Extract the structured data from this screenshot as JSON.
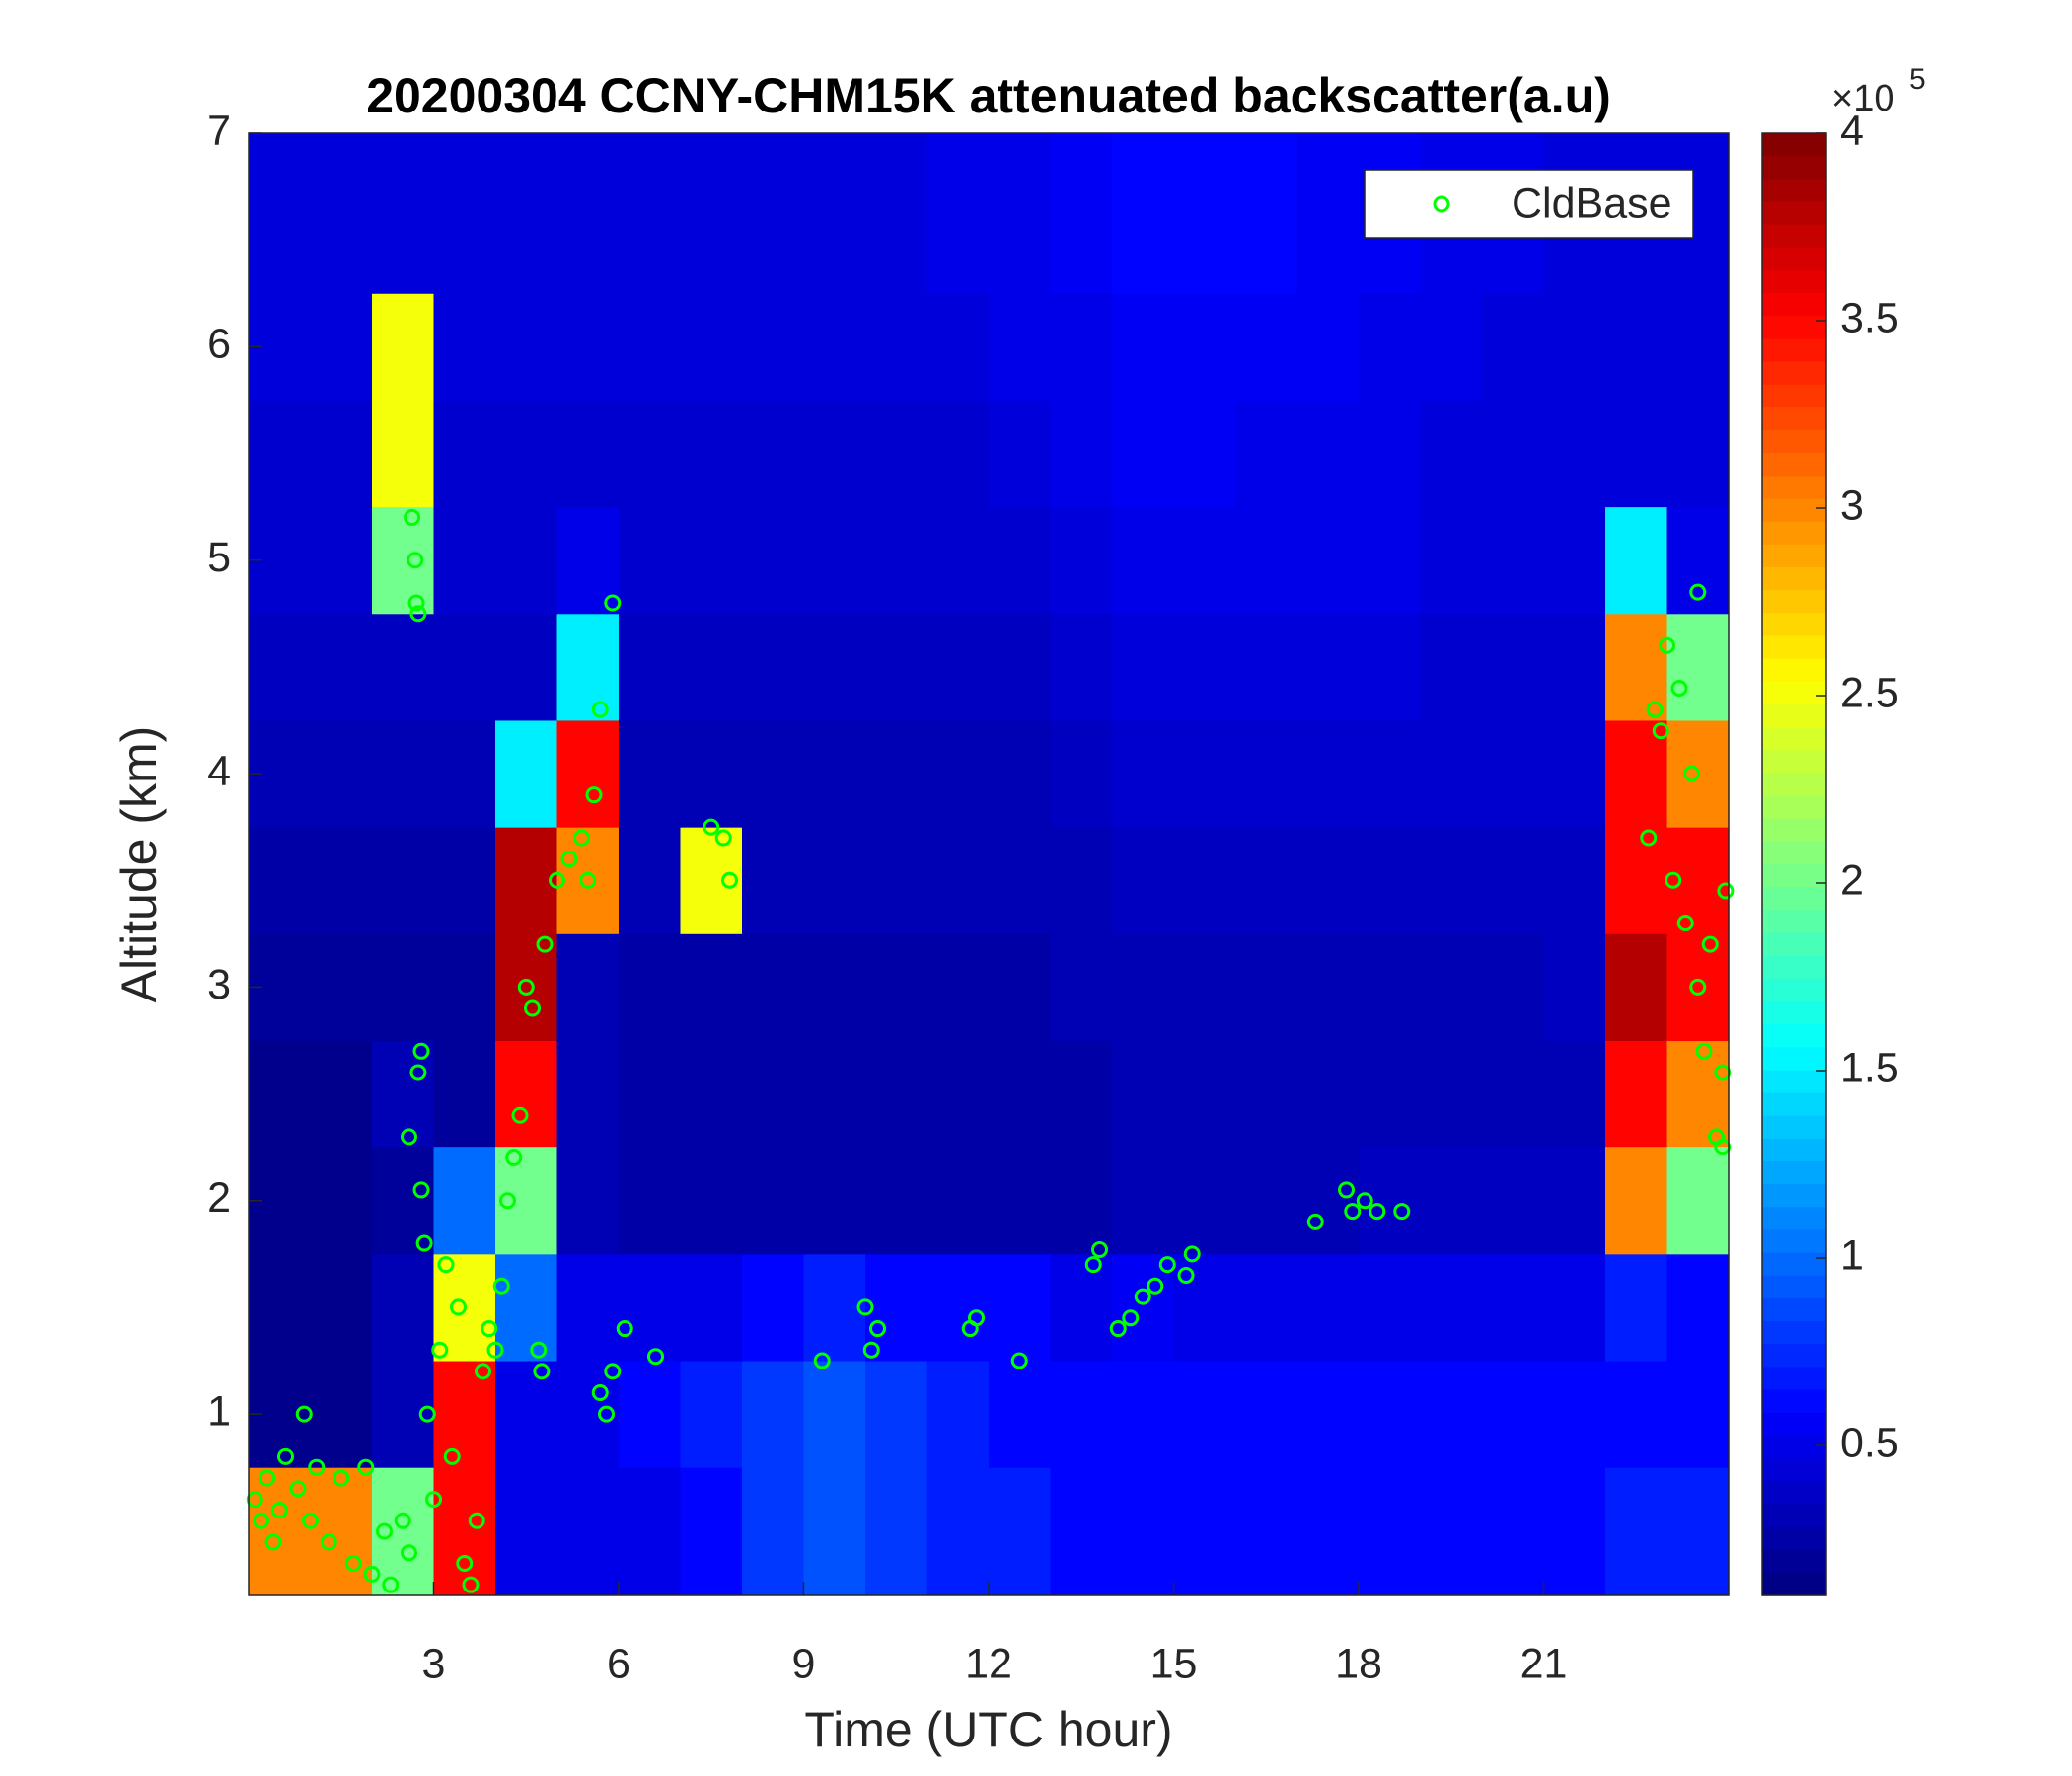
{
  "chart_data": {
    "type": "heatmap",
    "title": "20200304 CCNY-CHM15K attenuated backscatter(a.u)",
    "xlabel": "Time (UTC hour)",
    "ylabel": "Altitude (km)",
    "xlim": [
      0,
      24
    ],
    "ylim": [
      0.15,
      7
    ],
    "xticks": [
      3,
      6,
      9,
      12,
      15,
      18,
      21
    ],
    "yticks": [
      1,
      2,
      3,
      4,
      5,
      6,
      7
    ],
    "colormap": "jet",
    "clim": [
      0.1,
      4
    ],
    "cticks": [
      0.5,
      1,
      1.5,
      2,
      2.5,
      3,
      3.5,
      4
    ],
    "colorbar_multiplier_label": "×10",
    "colorbar_exponent": 5,
    "legend_position": "upper right",
    "x": [
      0.5,
      1.5,
      2.5,
      3.5,
      4.5,
      5.5,
      6.5,
      7.5,
      8.5,
      9.5,
      10.5,
      11.5,
      12.5,
      13.5,
      14.5,
      15.5,
      16.5,
      17.5,
      18.5,
      19.5,
      20.5,
      21.5,
      22.5,
      23.5
    ],
    "y": [
      0.5,
      1,
      1.5,
      2,
      2.5,
      3,
      3.5,
      4,
      4.5,
      5,
      5.5,
      6,
      6.5
    ],
    "z": [
      [
        3,
        3,
        2,
        3.5,
        0.5,
        0.5,
        0.5,
        0.6,
        0.8,
        0.9,
        0.8,
        0.7,
        0.7,
        0.6,
        0.6,
        0.6,
        0.6,
        0.6,
        0.6,
        0.6,
        0.6,
        0.6,
        0.7,
        0.7
      ],
      [
        0.15,
        0.15,
        0.3,
        3.5,
        0.5,
        0.5,
        0.6,
        0.7,
        0.8,
        0.9,
        0.8,
        0.7,
        0.6,
        0.6,
        0.6,
        0.6,
        0.6,
        0.6,
        0.6,
        0.6,
        0.6,
        0.6,
        0.6,
        0.6
      ],
      [
        0.15,
        0.15,
        0.3,
        2.5,
        1,
        0.5,
        0.5,
        0.5,
        0.6,
        0.7,
        0.6,
        0.6,
        0.6,
        0.5,
        0.55,
        0.5,
        0.5,
        0.5,
        0.5,
        0.5,
        0.5,
        0.5,
        0.7,
        0.6
      ],
      [
        0.15,
        0.15,
        0.2,
        1,
        2,
        0.3,
        0.25,
        0.25,
        0.25,
        0.25,
        0.25,
        0.25,
        0.25,
        0.25,
        0.3,
        0.3,
        0.3,
        0.3,
        0.35,
        0.35,
        0.35,
        0.35,
        3,
        2
      ],
      [
        0.15,
        0.15,
        0.3,
        0.2,
        3.5,
        0.3,
        0.25,
        0.25,
        0.25,
        0.25,
        0.25,
        0.25,
        0.25,
        0.25,
        0.3,
        0.3,
        0.3,
        0.3,
        0.3,
        0.3,
        0.3,
        0.3,
        3.5,
        3
      ],
      [
        0.2,
        0.2,
        0.2,
        0.2,
        3.8,
        0.3,
        0.25,
        0.25,
        0.25,
        0.25,
        0.25,
        0.25,
        0.25,
        0.3,
        0.3,
        0.3,
        0.3,
        0.3,
        0.3,
        0.3,
        0.3,
        0.35,
        3.8,
        3.5
      ],
      [
        0.25,
        0.25,
        0.25,
        0.25,
        3.8,
        3,
        0.3,
        2.5,
        0.3,
        0.3,
        0.3,
        0.3,
        0.3,
        0.3,
        0.35,
        0.35,
        0.35,
        0.35,
        0.35,
        0.35,
        0.35,
        0.35,
        3.5,
        3.5
      ],
      [
        0.3,
        0.3,
        0.3,
        0.3,
        1.5,
        3.5,
        0.3,
        0.3,
        0.3,
        0.3,
        0.3,
        0.3,
        0.3,
        0.35,
        0.4,
        0.4,
        0.4,
        0.4,
        0.4,
        0.4,
        0.4,
        0.4,
        3.5,
        3
      ],
      [
        0.35,
        0.35,
        0.35,
        0.35,
        0.35,
        1.5,
        0.35,
        0.35,
        0.35,
        0.35,
        0.35,
        0.35,
        0.35,
        0.4,
        0.45,
        0.45,
        0.45,
        0.45,
        0.45,
        0.4,
        0.4,
        0.4,
        3,
        2
      ],
      [
        0.4,
        0.4,
        2,
        0.4,
        0.4,
        0.5,
        0.4,
        0.4,
        0.4,
        0.4,
        0.4,
        0.4,
        0.4,
        0.45,
        0.5,
        0.5,
        0.5,
        0.5,
        0.5,
        0.45,
        0.45,
        0.45,
        1.5,
        0.5
      ],
      [
        0.4,
        0.4,
        2.5,
        0.4,
        0.4,
        0.4,
        0.4,
        0.4,
        0.4,
        0.4,
        0.4,
        0.4,
        0.45,
        0.5,
        0.55,
        0.55,
        0.5,
        0.5,
        0.5,
        0.45,
        0.45,
        0.45,
        0.45,
        0.45
      ],
      [
        0.45,
        0.45,
        2.5,
        0.45,
        0.45,
        0.45,
        0.45,
        0.45,
        0.45,
        0.45,
        0.45,
        0.45,
        0.5,
        0.5,
        0.55,
        0.55,
        0.55,
        0.55,
        0.5,
        0.5,
        0.45,
        0.45,
        0.45,
        0.45
      ],
      [
        0.45,
        0.45,
        0.45,
        0.45,
        0.45,
        0.45,
        0.45,
        0.45,
        0.45,
        0.45,
        0.45,
        0.5,
        0.5,
        0.55,
        0.6,
        0.6,
        0.6,
        0.55,
        0.55,
        0.5,
        0.5,
        0.45,
        0.45,
        0.45
      ]
    ],
    "series": [
      {
        "name": "CldBase",
        "color": "#00ff00",
        "x": [
          0.1,
          0.2,
          0.3,
          0.4,
          0.5,
          0.6,
          0.8,
          0.9,
          1.0,
          1.1,
          1.3,
          1.5,
          1.7,
          1.9,
          2.0,
          2.2,
          2.3,
          2.5,
          2.6,
          2.65,
          2.7,
          2.72,
          2.75,
          2.6,
          2.75,
          2.8,
          2.8,
          2.85,
          2.9,
          3.0,
          3.1,
          3.2,
          3.3,
          3.4,
          3.5,
          3.6,
          3.7,
          3.8,
          3.9,
          4.0,
          4.1,
          4.2,
          4.3,
          4.4,
          4.5,
          4.6,
          4.8,
          5.0,
          5.2,
          5.4,
          5.5,
          5.6,
          5.7,
          5.9,
          4.7,
          4.75,
          5.7,
          5.8,
          5.9,
          6.1,
          6.6,
          7.5,
          7.7,
          7.8,
          9.3,
          10.0,
          10.1,
          10.2,
          11.7,
          11.8,
          12.5,
          13.7,
          13.8,
          14.1,
          14.3,
          14.5,
          14.7,
          14.9,
          15.2,
          15.3,
          17.3,
          17.8,
          17.9,
          18.1,
          18.3,
          18.7,
          22.7,
          22.8,
          22.9,
          23.0,
          23.1,
          23.2,
          23.3,
          23.4,
          23.5,
          23.5,
          23.6,
          23.7,
          23.8,
          23.9,
          23.95,
          23.9
        ],
        "values": [
          0.6,
          0.5,
          0.7,
          0.4,
          0.55,
          0.8,
          0.65,
          1.0,
          0.5,
          0.75,
          0.4,
          0.7,
          0.3,
          0.75,
          0.25,
          0.45,
          0.2,
          0.5,
          0.35,
          5.2,
          5.0,
          4.8,
          4.75,
          2.3,
          2.6,
          2.7,
          2.05,
          1.8,
          1.0,
          0.6,
          1.3,
          1.7,
          0.8,
          1.5,
          0.3,
          0.2,
          0.5,
          1.2,
          1.4,
          1.3,
          1.6,
          2.0,
          2.2,
          2.4,
          3.0,
          2.9,
          3.2,
          3.5,
          3.6,
          3.7,
          3.5,
          3.9,
          4.3,
          4.8,
          1.3,
          1.2,
          1.1,
          1.0,
          1.2,
          1.4,
          1.27,
          3.75,
          3.7,
          3.5,
          1.25,
          1.5,
          1.3,
          1.4,
          1.4,
          1.45,
          1.25,
          1.7,
          1.77,
          1.4,
          1.45,
          1.55,
          1.6,
          1.7,
          1.65,
          1.75,
          1.9,
          2.05,
          1.95,
          2.0,
          1.95,
          1.95,
          3.7,
          4.3,
          4.2,
          4.6,
          3.5,
          4.4,
          3.3,
          4.0,
          3.0,
          4.85,
          2.7,
          3.2,
          2.3,
          2.6,
          3.45,
          2.25
        ]
      }
    ]
  }
}
